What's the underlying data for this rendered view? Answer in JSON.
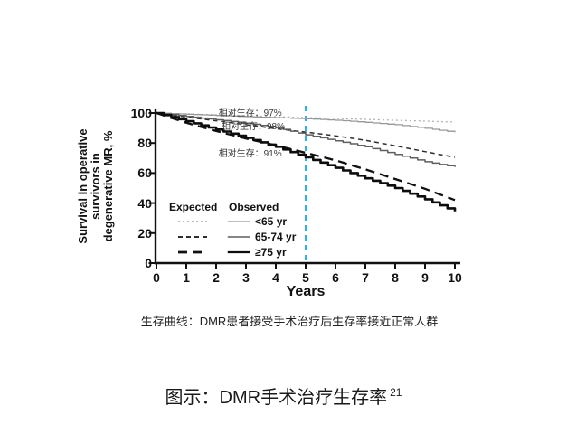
{
  "caption": "生存曲线：DMR患者接受手术治疗后生存率接近正常人群",
  "slide_title": {
    "text": "图示：DMR手术治疗生存率",
    "superscript": "21"
  },
  "chart_data": {
    "type": "line",
    "xlabel": "Years",
    "ylabel": "Survival in operative survivors in degenerative MR, %",
    "ylabel_lines": [
      "Survival in operative",
      "survivors in",
      "degenerative MR, %"
    ],
    "xlim": [
      0,
      10
    ],
    "ylim": [
      0,
      100
    ],
    "x_ticks": [
      0,
      1,
      2,
      3,
      4,
      5,
      6,
      7,
      8,
      9,
      10
    ],
    "y_ticks": [
      100,
      80,
      60,
      40,
      20,
      0
    ],
    "grid": false,
    "legend": {
      "position": "inside-bottom-left",
      "headers": [
        "Expected",
        "Observed"
      ],
      "row_labels": [
        "<65 yr",
        "65-74 yr",
        "≥75 yr"
      ]
    },
    "reference_line": {
      "x": 5,
      "style": "dashed",
      "color": "#2ab3e8"
    },
    "annotations": [
      {
        "text": "相对生存：97%",
        "x": 2.9,
        "y": 97
      },
      {
        "text": "相对生存：98%",
        "x": 3.0,
        "y": 88
      },
      {
        "text": "相对生存：91%",
        "x": 2.9,
        "y": 70
      }
    ],
    "x": [
      0,
      1,
      2,
      3,
      4,
      5,
      6,
      7,
      8,
      9,
      10
    ],
    "series": [
      {
        "name": "Expected <65 yr",
        "group": "<65 yr",
        "kind": "expected",
        "line": "dotted",
        "color": "#b2b2b2",
        "width": 1.3,
        "values": [
          100,
          99.4,
          98.8,
          98.2,
          97.6,
          97.0,
          96.4,
          95.8,
          95.2,
          94.6,
          94.0
        ]
      },
      {
        "name": "Observed <65 yr",
        "group": "<65 yr",
        "kind": "observed",
        "line": "solid-step",
        "color": "#989898",
        "width": 1.3,
        "values": [
          100,
          99.2,
          98.4,
          97.6,
          96.9,
          96.2,
          95.2,
          93.8,
          92.2,
          89.8,
          87.2
        ]
      },
      {
        "name": "Expected 65-74 yr",
        "group": "65-74 yr",
        "kind": "expected",
        "line": "dashed",
        "color": "#2f2f2f",
        "width": 1.5,
        "values": [
          100,
          97.3,
          94.8,
          92.2,
          89.6,
          87.3,
          84.8,
          81.8,
          78.2,
          74.3,
          70.5
        ]
      },
      {
        "name": "Observed 65-74 yr",
        "group": "65-74 yr",
        "kind": "observed",
        "line": "solid-step",
        "color": "#5f5f5f",
        "width": 1.5,
        "values": [
          100,
          97.8,
          95.5,
          93.2,
          90.3,
          85.5,
          81.5,
          77.5,
          72.5,
          67.5,
          64.0
        ]
      },
      {
        "name": "Expected ≥75 yr",
        "group": "≥75 yr",
        "kind": "expected",
        "line": "long-dash",
        "color": "#101010",
        "width": 2.3,
        "values": [
          100,
          93.5,
          88.0,
          83.0,
          78.5,
          73.5,
          68.5,
          62.5,
          56.0,
          49.5,
          42.0
        ]
      },
      {
        "name": "Observed ≥75 yr",
        "group": "≥75 yr",
        "kind": "observed",
        "line": "solid-step",
        "color": "#0d0d0d",
        "width": 2.6,
        "values": [
          100,
          94.5,
          89.0,
          83.5,
          77.5,
          70.5,
          63.5,
          56.5,
          50.0,
          42.5,
          34.5
        ]
      }
    ]
  }
}
